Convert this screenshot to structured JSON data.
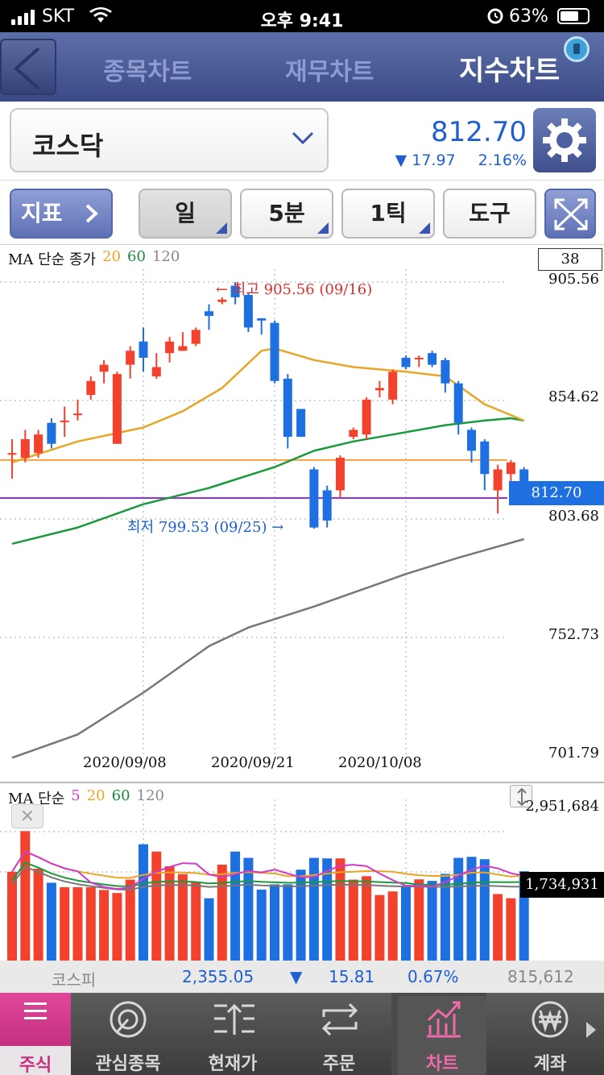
{
  "status_bar": {
    "carrier": "SKT",
    "time": "오후 9:41",
    "battery": "63%"
  },
  "tabs": [
    {
      "label": "종목차트",
      "active": false
    },
    {
      "label": "재무차트",
      "active": false
    },
    {
      "label": "지수차트",
      "active": true
    }
  ],
  "index": {
    "name": "코스닥",
    "price": "812.70",
    "change_direction": "down",
    "change": "17.97",
    "change_pct": "2.16%"
  },
  "toolbar": {
    "indicator_label": "지표",
    "period_label": "일",
    "minute_label": "5분",
    "tick_label": "1틱",
    "tools_label": "도구"
  },
  "price_chart": {
    "legend": {
      "title": "MA 단순 종가",
      "ma1": "20",
      "ma2": "60",
      "ma3": "120"
    },
    "count": "38",
    "y_labels": [
      "905.56",
      "854.62",
      "803.68",
      "752.73",
      "701.79"
    ],
    "current_label": "812.70",
    "x_labels": [
      "2020/09/08",
      "2020/09/21",
      "2020/10/08"
    ],
    "high_annotation": "← 최고 905.56 (09/16)",
    "low_annotation": "최저 799.53 (09/25) →",
    "colors": {
      "up": "#f2412c",
      "down": "#1e6fe0",
      "ma20": "#e8a626",
      "ma60": "#1a9a3c",
      "ma120": "#777777",
      "hline_orange": "#f7a040",
      "hline_purple": "#9b30d9"
    }
  },
  "volume_chart": {
    "legend": {
      "title": "MA 단순",
      "ma1": "5",
      "ma2": "20",
      "ma3": "60",
      "ma4": "120"
    },
    "y_top": "2,951,684",
    "y_current": "1,734,931",
    "close_label": "×"
  },
  "chart_data": {
    "type": "candlestick",
    "title": "",
    "ylim": [
      701.79,
      905.56
    ],
    "x_ticks": [
      "2020/09/08",
      "2020/09/21",
      "2020/10/08"
    ],
    "candles": [
      {
        "o": 832,
        "c": 832,
        "h": 838,
        "l": 821
      },
      {
        "o": 830,
        "c": 838,
        "h": 842,
        "l": 828
      },
      {
        "o": 832,
        "c": 840,
        "h": 842,
        "l": 830
      },
      {
        "o": 845,
        "c": 836,
        "h": 847,
        "l": 834
      },
      {
        "o": 846,
        "c": 846,
        "h": 852,
        "l": 839
      },
      {
        "o": 849,
        "c": 849,
        "h": 855,
        "l": 846
      },
      {
        "o": 857,
        "c": 863,
        "h": 865,
        "l": 855
      },
      {
        "o": 867,
        "c": 870,
        "h": 872,
        "l": 862
      },
      {
        "o": 836,
        "c": 866,
        "h": 867,
        "l": 836
      },
      {
        "o": 870,
        "c": 876,
        "h": 878,
        "l": 864
      },
      {
        "o": 880,
        "c": 873,
        "h": 886,
        "l": 867
      },
      {
        "o": 865,
        "c": 869,
        "h": 875,
        "l": 864
      },
      {
        "o": 875,
        "c": 880,
        "h": 882,
        "l": 871
      },
      {
        "o": 876,
        "c": 878,
        "h": 884,
        "l": 876
      },
      {
        "o": 879,
        "c": 885,
        "h": 886,
        "l": 878
      },
      {
        "o": 893,
        "c": 891,
        "h": 896,
        "l": 885
      },
      {
        "o": 897,
        "c": 898,
        "h": 899,
        "l": 896
      },
      {
        "o": 904,
        "c": 899,
        "h": 905.56,
        "l": 896
      },
      {
        "o": 900,
        "c": 886,
        "h": 901,
        "l": 884
      },
      {
        "o": 890,
        "c": 889,
        "h": 890,
        "l": 883
      },
      {
        "o": 888,
        "c": 863,
        "h": 889,
        "l": 862
      },
      {
        "o": 864,
        "c": 839,
        "h": 866,
        "l": 834
      },
      {
        "o": 851,
        "c": 839,
        "h": 851,
        "l": 839
      },
      {
        "o": 825,
        "c": 800,
        "h": 826,
        "l": 799.53
      },
      {
        "o": 816,
        "c": 803,
        "h": 818,
        "l": 800
      },
      {
        "o": 816,
        "c": 830,
        "h": 831,
        "l": 813
      },
      {
        "o": 839,
        "c": 842,
        "h": 843,
        "l": 838
      },
      {
        "o": 840,
        "c": 855,
        "h": 856,
        "l": 838
      },
      {
        "o": 859,
        "c": 860,
        "h": 863,
        "l": 856
      },
      {
        "o": 855,
        "c": 867,
        "h": 868,
        "l": 853
      },
      {
        "o": 873,
        "c": 869,
        "h": 874,
        "l": 868
      },
      {
        "o": 873,
        "c": 873,
        "h": 874,
        "l": 869
      },
      {
        "o": 875,
        "c": 870,
        "h": 876,
        "l": 869
      },
      {
        "o": 872,
        "c": 862,
        "h": 873,
        "l": 858
      },
      {
        "o": 862,
        "c": 845,
        "h": 863,
        "l": 840
      },
      {
        "o": 842,
        "c": 833,
        "h": 843,
        "l": 828
      },
      {
        "o": 837,
        "c": 823,
        "h": 838,
        "l": 816
      },
      {
        "o": 816,
        "c": 825,
        "h": 827,
        "l": 806
      },
      {
        "o": 823,
        "c": 828,
        "h": 829,
        "l": 816
      },
      {
        "o": 825,
        "c": 812.7,
        "h": 826,
        "l": 812
      }
    ],
    "ma20": [
      [
        0,
        828
      ],
      [
        5,
        837
      ],
      [
        10,
        843
      ],
      [
        13,
        850
      ],
      [
        16,
        860
      ],
      [
        19,
        876
      ],
      [
        20,
        877
      ],
      [
        23,
        872
      ],
      [
        26,
        869
      ],
      [
        30,
        867
      ],
      [
        33,
        865
      ],
      [
        36,
        853
      ],
      [
        39,
        846
      ]
    ],
    "ma60": [
      [
        0,
        793
      ],
      [
        5,
        800
      ],
      [
        10,
        810
      ],
      [
        15,
        817
      ],
      [
        20,
        826
      ],
      [
        23,
        833
      ],
      [
        26,
        837
      ],
      [
        30,
        841
      ],
      [
        33,
        844
      ],
      [
        36,
        846
      ],
      [
        38,
        847
      ],
      [
        39,
        846
      ]
    ],
    "ma120": [
      [
        0,
        701
      ],
      [
        5,
        711
      ],
      [
        10,
        729
      ],
      [
        15,
        749
      ],
      [
        18,
        757
      ],
      [
        23,
        766
      ],
      [
        26,
        772
      ],
      [
        30,
        780
      ],
      [
        34,
        787
      ],
      [
        39,
        795
      ]
    ],
    "hlines": [
      {
        "value": 829,
        "color": "orange"
      },
      {
        "value": 812.7,
        "color": "purple"
      }
    ],
    "volume": {
      "ylim": [
        0,
        2951684
      ],
      "bars": [
        1725000,
        2500000,
        1785000,
        1515000,
        1430000,
        1430000,
        1430000,
        1378000,
        1320000,
        1575000,
        2250000,
        2110000,
        1830000,
        1680000,
        1530000,
        1220000,
        1860000,
        2110000,
        1990000,
        1385000,
        1485000,
        1485000,
        1765000,
        1990000,
        1980000,
        1980000,
        1575000,
        1640000,
        1280000,
        1350000,
        1450000,
        1580000,
        1550000,
        1685000,
        1990000,
        2010000,
        1965000,
        1300000,
        1220000,
        1734931
      ]
    }
  }
}
